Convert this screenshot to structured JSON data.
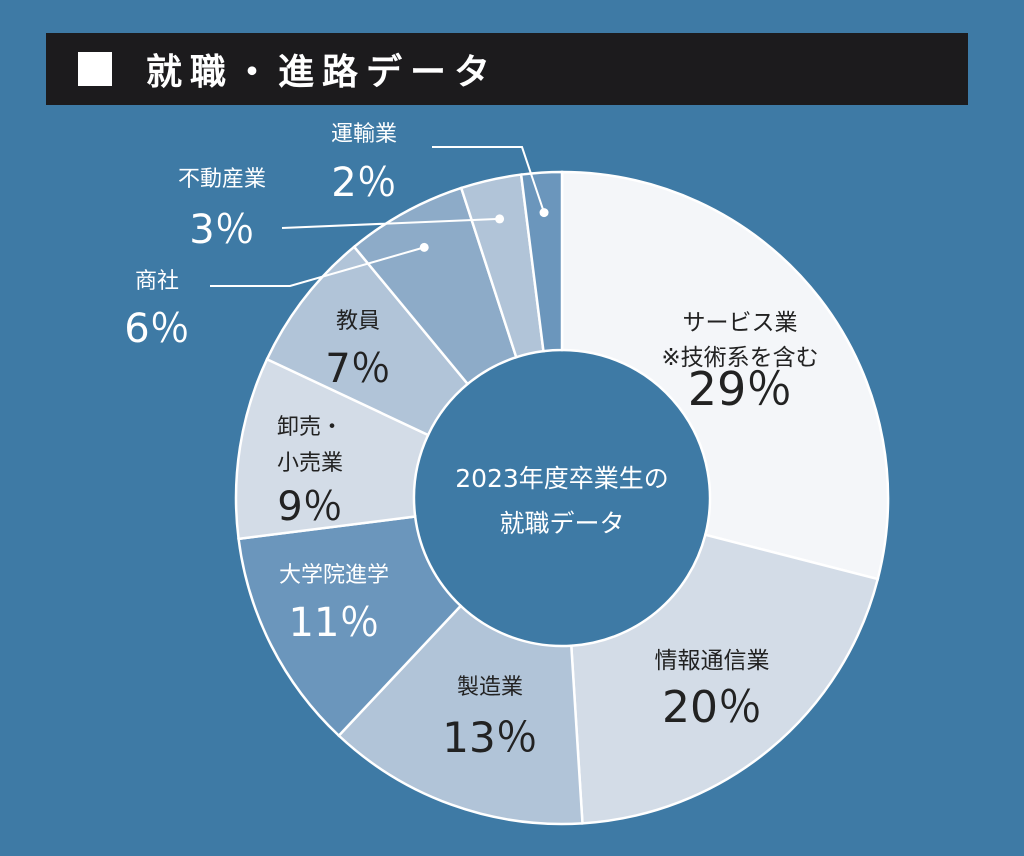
{
  "header": {
    "title": "就職・進路データ"
  },
  "chart_data": {
    "type": "pie",
    "title": "2023年度卒業生の就職データ",
    "center_lines": [
      "2023年度卒業生の",
      "就職データ"
    ],
    "categories": [
      "サービス業",
      "情報通信業",
      "製造業",
      "大学院進学",
      "卸売・小売業",
      "教員",
      "商社",
      "不動産業",
      "運輸業"
    ],
    "label_lines": [
      [
        "サービス業",
        "※技術系を含む"
      ],
      [
        "情報通信業"
      ],
      [
        "製造業"
      ],
      [
        "大学院進学"
      ],
      [
        "卸売・",
        "小売業"
      ],
      [
        "教員"
      ],
      [
        "商社"
      ],
      [
        "不動産業"
      ],
      [
        "運輸業"
      ]
    ],
    "values": [
      29,
      20,
      13,
      11,
      9,
      7,
      6,
      3,
      2
    ],
    "value_labels": [
      "29％",
      "20％",
      "13％",
      "11％",
      "9％",
      "7％",
      "6％",
      "3％",
      "2％"
    ],
    "colors": [
      "#f4f6f9",
      "#d3dce7",
      "#b1c4d8",
      "#6b96bc",
      "#d3dce7",
      "#b1c4d8",
      "#8dabc8",
      "#b1c4d8",
      "#6b96bc"
    ],
    "background": "#3e7aa5",
    "legend": "none"
  }
}
